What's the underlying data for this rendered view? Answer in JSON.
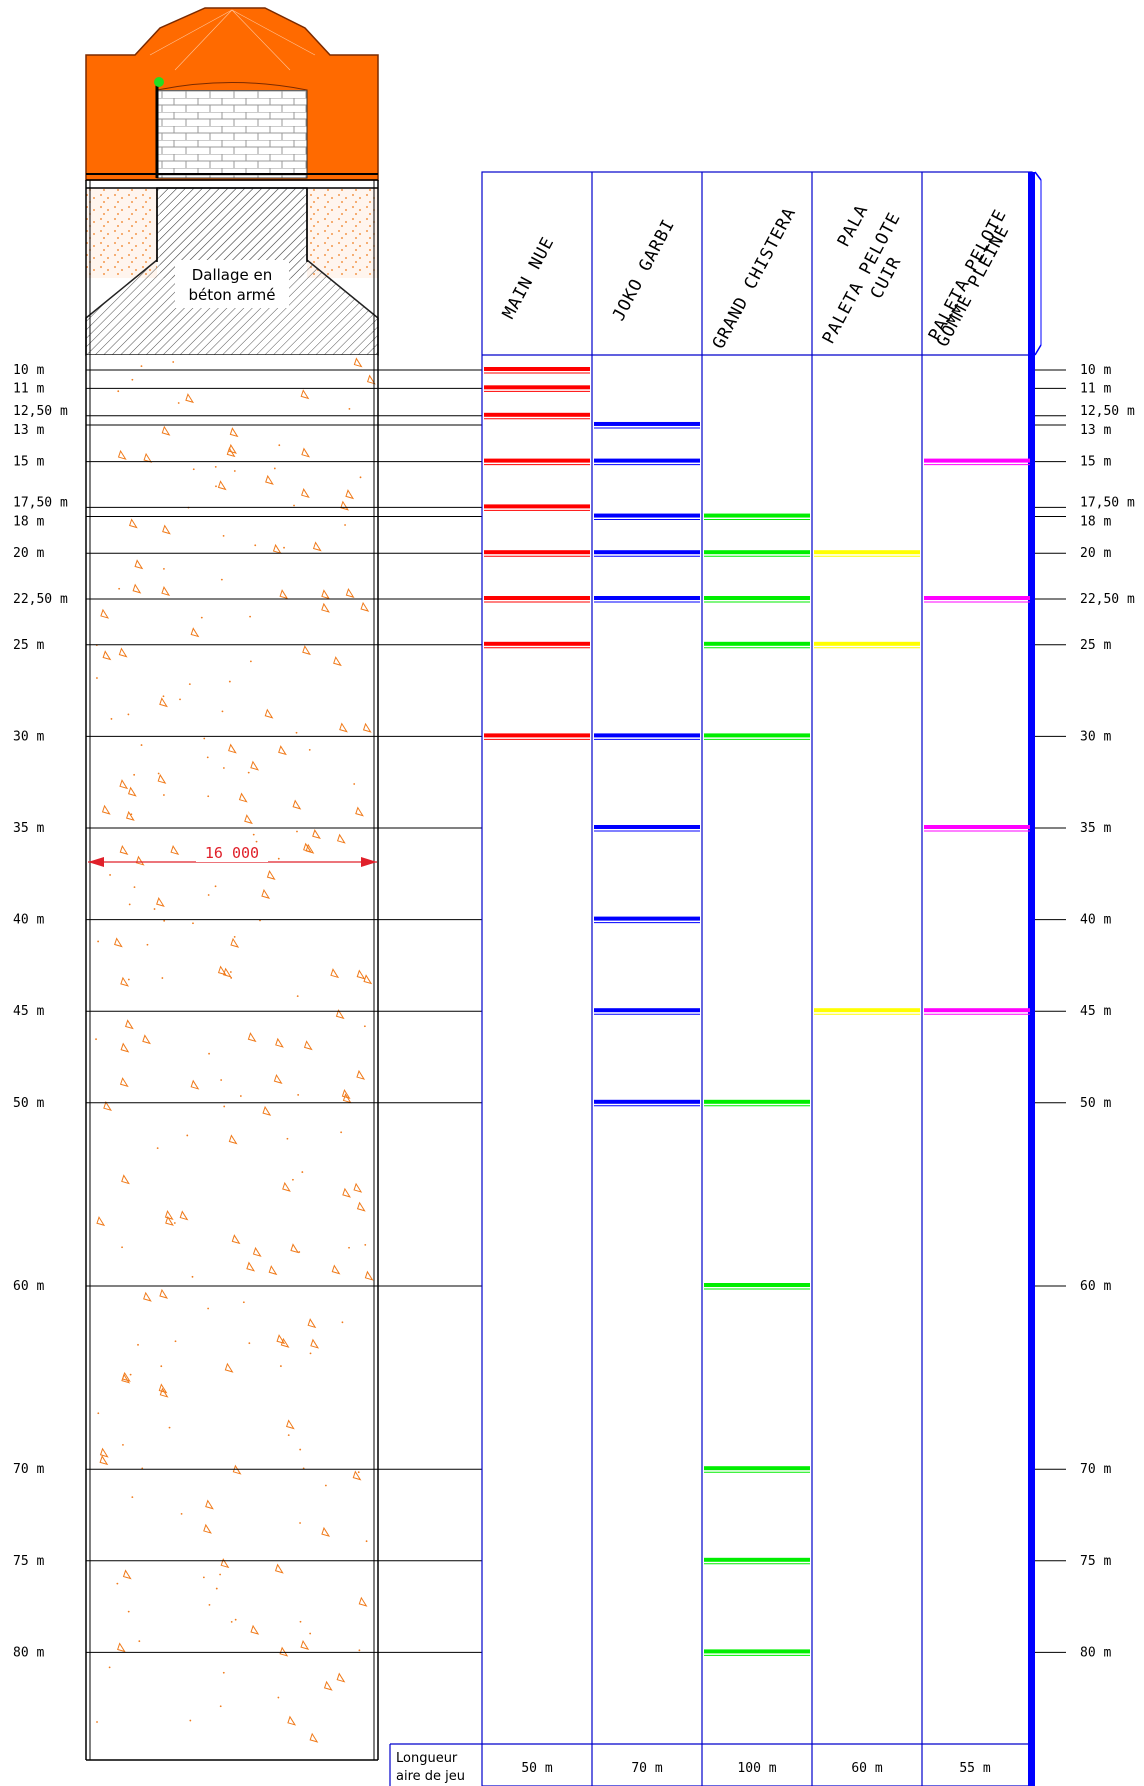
{
  "pit": {
    "caption_line1": "Dallage en",
    "caption_line2": "béton armé",
    "width_dimension": "16 000"
  },
  "distance_labels": [
    {
      "m": 10,
      "text": "10 m"
    },
    {
      "m": 11,
      "text": "11 m"
    },
    {
      "m": 12.5,
      "text": "12,50 m"
    },
    {
      "m": 13,
      "text": "13 m"
    },
    {
      "m": 15,
      "text": "15 m"
    },
    {
      "m": 17.5,
      "text": "17,50 m"
    },
    {
      "m": 18,
      "text": "18 m"
    },
    {
      "m": 20,
      "text": "20 m"
    },
    {
      "m": 22.5,
      "text": "22,50 m"
    },
    {
      "m": 25,
      "text": "25 m"
    },
    {
      "m": 30,
      "text": "30 m"
    },
    {
      "m": 35,
      "text": "35 m"
    },
    {
      "m": 40,
      "text": "40 m"
    },
    {
      "m": 45,
      "text": "45 m"
    },
    {
      "m": 50,
      "text": "50 m"
    },
    {
      "m": 60,
      "text": "60 m"
    },
    {
      "m": 70,
      "text": "70 m"
    },
    {
      "m": 75,
      "text": "75 m"
    },
    {
      "m": 80,
      "text": "80 m"
    }
  ],
  "columns": [
    {
      "key": "main-nue",
      "title_lines": [
        "MAIN NUE"
      ],
      "color": "#ff0000",
      "marks": [
        10,
        11,
        12.5,
        15,
        17.5,
        20,
        22.5,
        25,
        30
      ],
      "length": "50 m"
    },
    {
      "key": "joko-garbi",
      "title_lines": [
        "JOKO GARBI"
      ],
      "color": "#0000ff",
      "marks": [
        13,
        15,
        18,
        20,
        22.5,
        30,
        35,
        40,
        45,
        50
      ],
      "length": "70 m"
    },
    {
      "key": "grand-chistera",
      "title_lines": [
        "GRAND CHISTERA"
      ],
      "color": "#00ee00",
      "marks": [
        18,
        20,
        22.5,
        25,
        30,
        50,
        60,
        70,
        75,
        80
      ],
      "length": "100 m"
    },
    {
      "key": "pala",
      "title_lines": [
        "PALA",
        "PALETA PELOTE",
        "CUIR"
      ],
      "color": "#ffff00",
      "marks": [
        20,
        25,
        45
      ],
      "length": "60 m"
    },
    {
      "key": "paleta-gomme",
      "title_lines": [
        "PALETA PELOTE",
        "GOMME PLEINE"
      ],
      "color": "#ff00ff",
      "marks": [
        15,
        22.5,
        35,
        45
      ],
      "length": "55 m"
    }
  ],
  "footer": {
    "label_line1": "Longueur",
    "label_line2": "aire de jeu"
  }
}
